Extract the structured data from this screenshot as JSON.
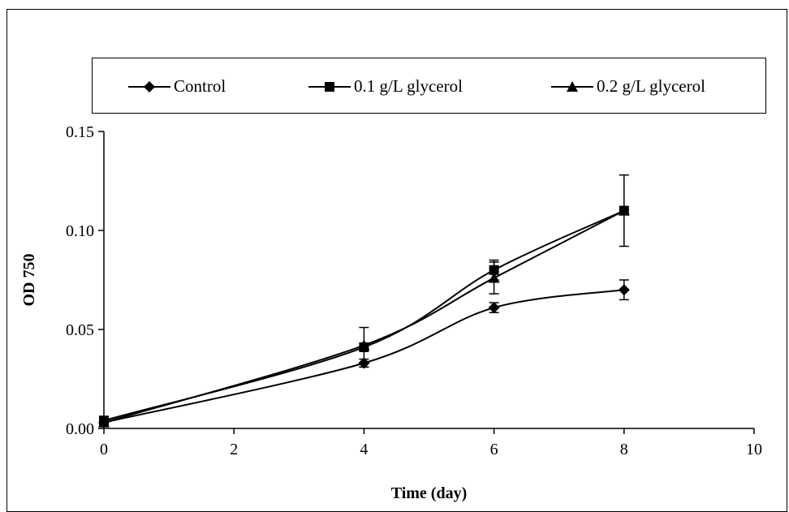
{
  "chart_data": {
    "type": "line",
    "xlabel": "Time (day)",
    "ylabel": "OD 750",
    "xlim": [
      0,
      10
    ],
    "ylim": [
      0,
      0.15
    ],
    "x_ticks": [
      0,
      2,
      4,
      6,
      8,
      10
    ],
    "x_tick_labels": [
      "0",
      "2",
      "4",
      "6",
      "8",
      "10"
    ],
    "y_ticks": [
      0,
      0.05,
      0.1,
      0.15
    ],
    "y_tick_labels": [
      "0.00",
      "0.05",
      "0.10",
      "0.15"
    ],
    "grid": false,
    "legend_position": "top",
    "series": [
      {
        "name": "Control",
        "marker": "diamond",
        "color": "#000000",
        "x": [
          0,
          4,
          6,
          8
        ],
        "y": [
          0.003,
          0.033,
          0.061,
          0.07
        ],
        "error": [
          0.0,
          0.002,
          0.0025,
          0.005
        ]
      },
      {
        "name": "0.1 g/L glycerol",
        "marker": "square",
        "color": "#000000",
        "x": [
          0,
          4,
          6,
          8
        ],
        "y": [
          0.004,
          0.041,
          0.08,
          0.11
        ],
        "error": [
          0.0,
          0.01,
          0.005,
          0.018
        ]
      },
      {
        "name": "0.2 g/L glycerol",
        "marker": "triangle",
        "color": "#000000",
        "x": [
          0,
          4,
          6,
          8
        ],
        "y": [
          0.003,
          0.042,
          0.076,
          0.11
        ],
        "error": [
          0.0,
          0.0,
          0.008,
          0.0
        ]
      }
    ]
  }
}
